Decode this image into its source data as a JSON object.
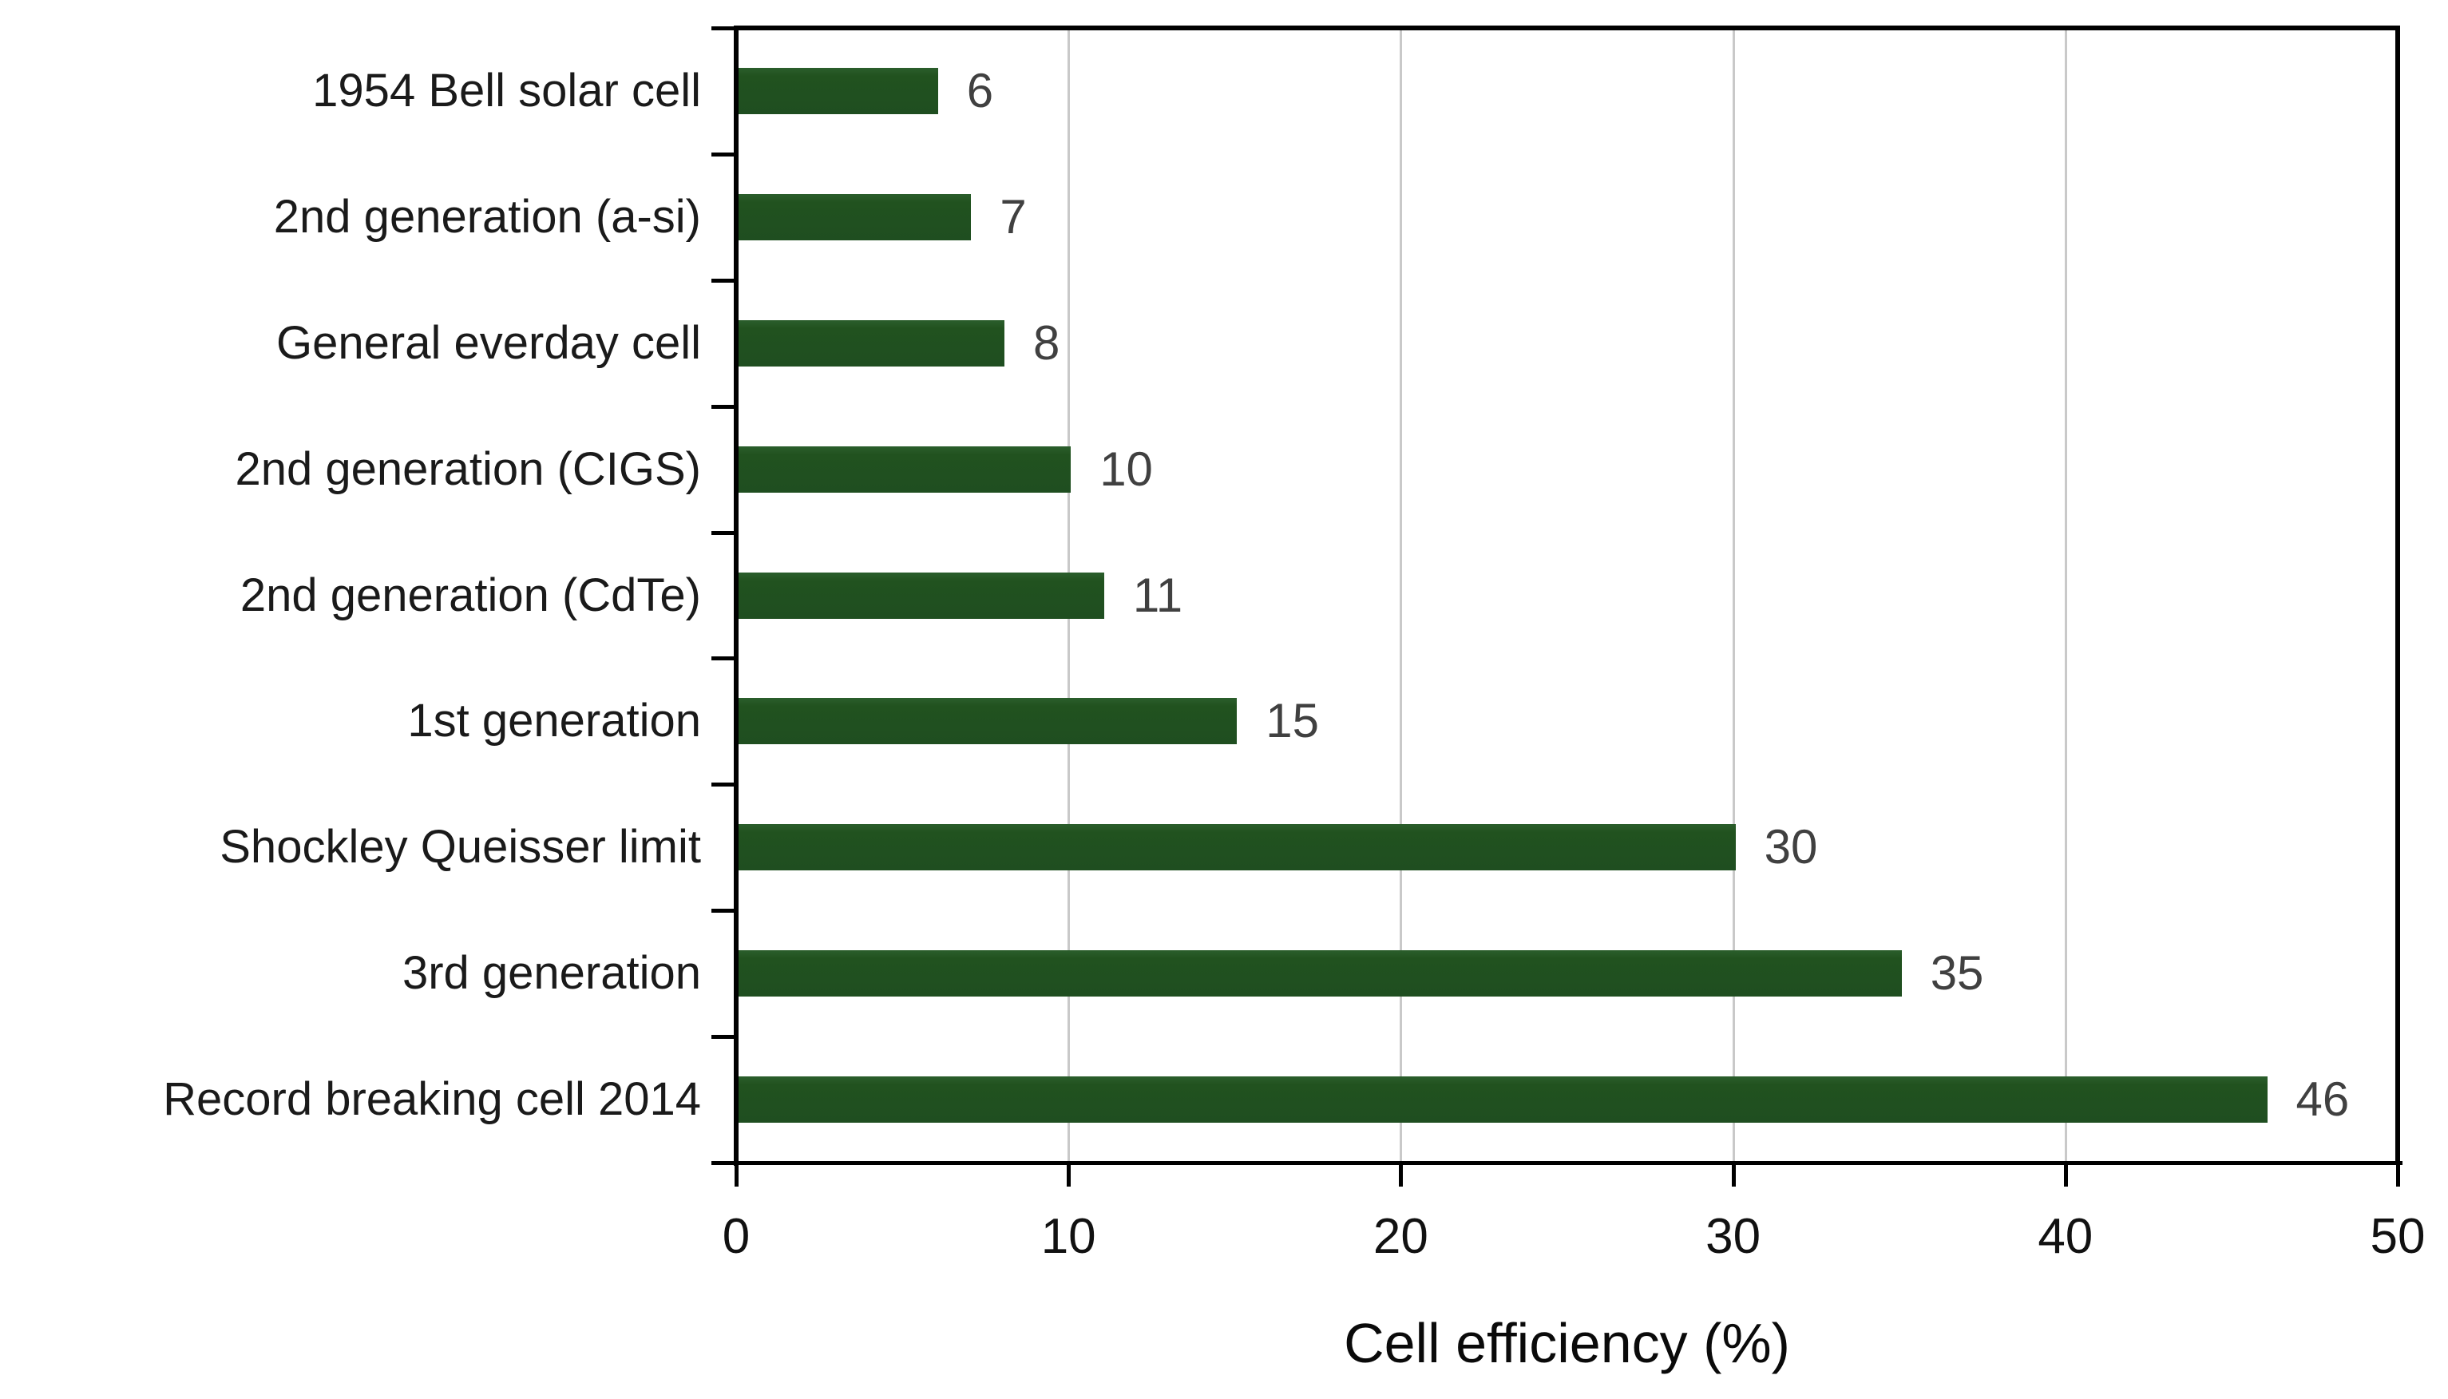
{
  "chart_data": {
    "type": "bar",
    "orientation": "horizontal",
    "title": "",
    "xlabel": "Cell efficiency (%)",
    "ylabel": "",
    "categories": [
      "1954 Bell solar cell",
      "2nd generation (a-si)",
      "General everday cell",
      "2nd generation (CIGS)",
      "2nd generation (CdTe)",
      "1st generation",
      "Shockley Queisser limit",
      "3rd generation",
      "Record breaking cell 2014"
    ],
    "values": [
      6,
      7,
      8,
      10,
      11,
      15,
      30,
      35,
      46
    ],
    "value_labels": [
      "6",
      "7",
      "8",
      "10",
      "11",
      "15",
      "30",
      "35",
      "46"
    ],
    "xlim": [
      0,
      50
    ],
    "xticks": [
      0,
      10,
      20,
      30,
      40,
      50
    ],
    "xtick_labels": [
      "0",
      "10",
      "20",
      "30",
      "40",
      "50"
    ],
    "grid": "vertical gridlines at 10, 20, 30, 40; right border at 50",
    "legend": "none",
    "colors": {
      "bar": "#1f4e20",
      "gridline": "#c9c9c9",
      "axis": "#000000",
      "value_label": "#404040",
      "category_label": "#1a1a1a",
      "background": "#ffffff"
    }
  }
}
